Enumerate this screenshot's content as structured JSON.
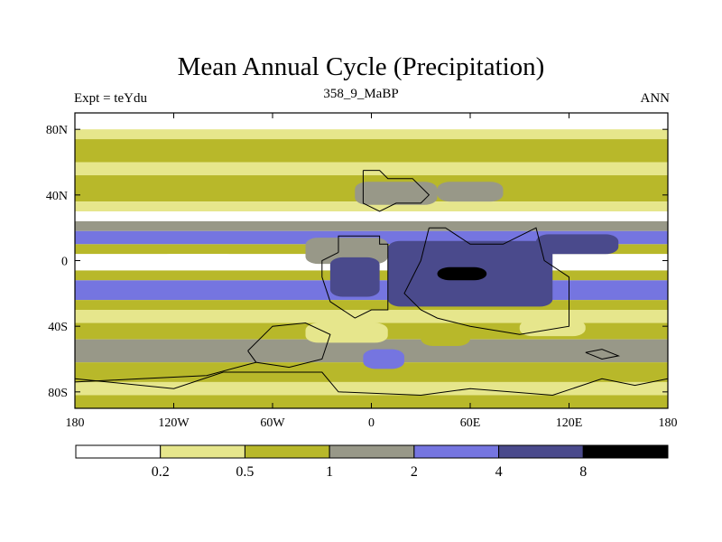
{
  "chart_data": {
    "type": "heatmap",
    "title": "Mean Annual Cycle (Precipitation)",
    "subtitle": "358_9_MaBP",
    "left_label": "Expt = teYdu",
    "right_label": "ANN",
    "x_axis": {
      "range": [
        -180,
        180
      ],
      "ticks": [
        -180,
        -120,
        -60,
        0,
        60,
        120,
        180
      ],
      "tick_labels": [
        "180",
        "120W",
        "60W",
        "0",
        "60E",
        "120E",
        "180"
      ]
    },
    "y_axis": {
      "range": [
        -90,
        90
      ],
      "ticks": [
        80,
        40,
        0,
        -40,
        -80
      ],
      "tick_labels": [
        "80N",
        "40N",
        "0",
        "40S",
        "80S"
      ]
    },
    "colorbar": {
      "levels": [
        "0.2",
        "0.5",
        "1",
        "2",
        "4",
        "8"
      ],
      "colors": [
        "#ffffff",
        "#e6e68c",
        "#b8b82a",
        "#989888",
        "#7575e0",
        "#4a4a8c",
        "#000000"
      ]
    },
    "zonal_bands": [
      {
        "lat_min": 80,
        "lat_max": 90,
        "level": 0
      },
      {
        "lat_min": 74,
        "lat_max": 80,
        "level": 1
      },
      {
        "lat_min": 60,
        "lat_max": 74,
        "level": 2
      },
      {
        "lat_min": 52,
        "lat_max": 60,
        "level": 1
      },
      {
        "lat_min": 36,
        "lat_max": 52,
        "level": 2
      },
      {
        "lat_min": 30,
        "lat_max": 36,
        "level": 1
      },
      {
        "lat_min": 24,
        "lat_max": 30,
        "level": 0
      },
      {
        "lat_min": 18,
        "lat_max": 24,
        "level": 3
      },
      {
        "lat_min": 10,
        "lat_max": 18,
        "level": 4
      },
      {
        "lat_min": 4,
        "lat_max": 10,
        "level": 2
      },
      {
        "lat_min": -6,
        "lat_max": 4,
        "level": 0
      },
      {
        "lat_min": -12,
        "lat_max": -6,
        "level": 2
      },
      {
        "lat_min": -24,
        "lat_max": -12,
        "level": 4
      },
      {
        "lat_min": -30,
        "lat_max": -24,
        "level": 2
      },
      {
        "lat_min": -38,
        "lat_max": -30,
        "level": 1
      },
      {
        "lat_min": -48,
        "lat_max": -38,
        "level": 2
      },
      {
        "lat_min": -62,
        "lat_max": -48,
        "level": 3
      },
      {
        "lat_min": -74,
        "lat_max": -62,
        "level": 2
      },
      {
        "lat_min": -82,
        "lat_max": -74,
        "level": 1
      },
      {
        "lat_min": -90,
        "lat_max": -82,
        "level": 2
      }
    ],
    "regions": [
      {
        "lon_min": -40,
        "lon_max": 10,
        "lat_min": -2,
        "lat_max": 14,
        "level": 3
      },
      {
        "lon_min": -25,
        "lon_max": 5,
        "lat_min": -22,
        "lat_max": 2,
        "level": 5
      },
      {
        "lon_min": 10,
        "lon_max": 110,
        "lat_min": -28,
        "lat_max": 12,
        "level": 5
      },
      {
        "lon_min": 40,
        "lon_max": 70,
        "lat_min": -12,
        "lat_max": -4,
        "level": 6
      },
      {
        "lon_min": 100,
        "lon_max": 150,
        "lat_min": 4,
        "lat_max": 16,
        "level": 5
      },
      {
        "lon_min": -10,
        "lon_max": 40,
        "lat_min": 34,
        "lat_max": 48,
        "level": 3
      },
      {
        "lon_min": -40,
        "lon_max": 10,
        "lat_min": -50,
        "lat_max": -38,
        "level": 1
      },
      {
        "lon_min": 30,
        "lon_max": 60,
        "lat_min": -52,
        "lat_max": -40,
        "level": 2
      },
      {
        "lon_min": 90,
        "lon_max": 130,
        "lat_min": -46,
        "lat_max": -36,
        "level": 1
      },
      {
        "lon_min": -5,
        "lon_max": 20,
        "lat_min": -66,
        "lat_max": -54,
        "level": 4
      },
      {
        "lon_min": 40,
        "lon_max": 80,
        "lat_min": 36,
        "lat_max": 48,
        "level": 3
      },
      {
        "lon_min": -130,
        "lon_max": -80,
        "lat_min": -4,
        "lat_max": 4,
        "level": 0
      }
    ],
    "continent_outlines": [
      [
        [
          -20,
          5
        ],
        [
          -20,
          15
        ],
        [
          5,
          15
        ],
        [
          5,
          10
        ],
        [
          10,
          10
        ],
        [
          10,
          -30
        ],
        [
          0,
          -30
        ],
        [
          -10,
          -35
        ],
        [
          -25,
          -25
        ],
        [
          -30,
          -10
        ],
        [
          -30,
          0
        ],
        [
          -20,
          5
        ]
      ],
      [
        [
          -5,
          55
        ],
        [
          5,
          55
        ],
        [
          10,
          50
        ],
        [
          25,
          50
        ],
        [
          35,
          40
        ],
        [
          30,
          35
        ],
        [
          15,
          35
        ],
        [
          5,
          30
        ],
        [
          -5,
          35
        ],
        [
          -5,
          55
        ]
      ],
      [
        [
          35,
          20
        ],
        [
          45,
          20
        ],
        [
          60,
          10
        ],
        [
          80,
          10
        ],
        [
          100,
          20
        ],
        [
          105,
          0
        ],
        [
          120,
          -10
        ],
        [
          120,
          -40
        ],
        [
          90,
          -45
        ],
        [
          60,
          -40
        ],
        [
          40,
          -35
        ],
        [
          30,
          -30
        ],
        [
          20,
          -20
        ],
        [
          30,
          0
        ],
        [
          35,
          20
        ]
      ],
      [
        [
          -75,
          -55
        ],
        [
          -60,
          -40
        ],
        [
          -40,
          -38
        ],
        [
          -25,
          -45
        ],
        [
          -30,
          -60
        ],
        [
          -50,
          -65
        ],
        [
          -70,
          -62
        ],
        [
          -75,
          -55
        ]
      ],
      [
        [
          -180,
          -72
        ],
        [
          -120,
          -78
        ],
        [
          -90,
          -68
        ],
        [
          -30,
          -68
        ],
        [
          -20,
          -80
        ],
        [
          30,
          -82
        ],
        [
          60,
          -78
        ],
        [
          110,
          -82
        ],
        [
          140,
          -72
        ],
        [
          160,
          -76
        ],
        [
          180,
          -72
        ]
      ],
      [
        [
          -70,
          -62
        ],
        [
          -100,
          -70
        ],
        [
          -140,
          -72
        ],
        [
          -180,
          -74
        ]
      ],
      [
        [
          130,
          -56
        ],
        [
          140,
          -60
        ],
        [
          150,
          -58
        ],
        [
          140,
          -54
        ],
        [
          130,
          -56
        ]
      ]
    ]
  }
}
